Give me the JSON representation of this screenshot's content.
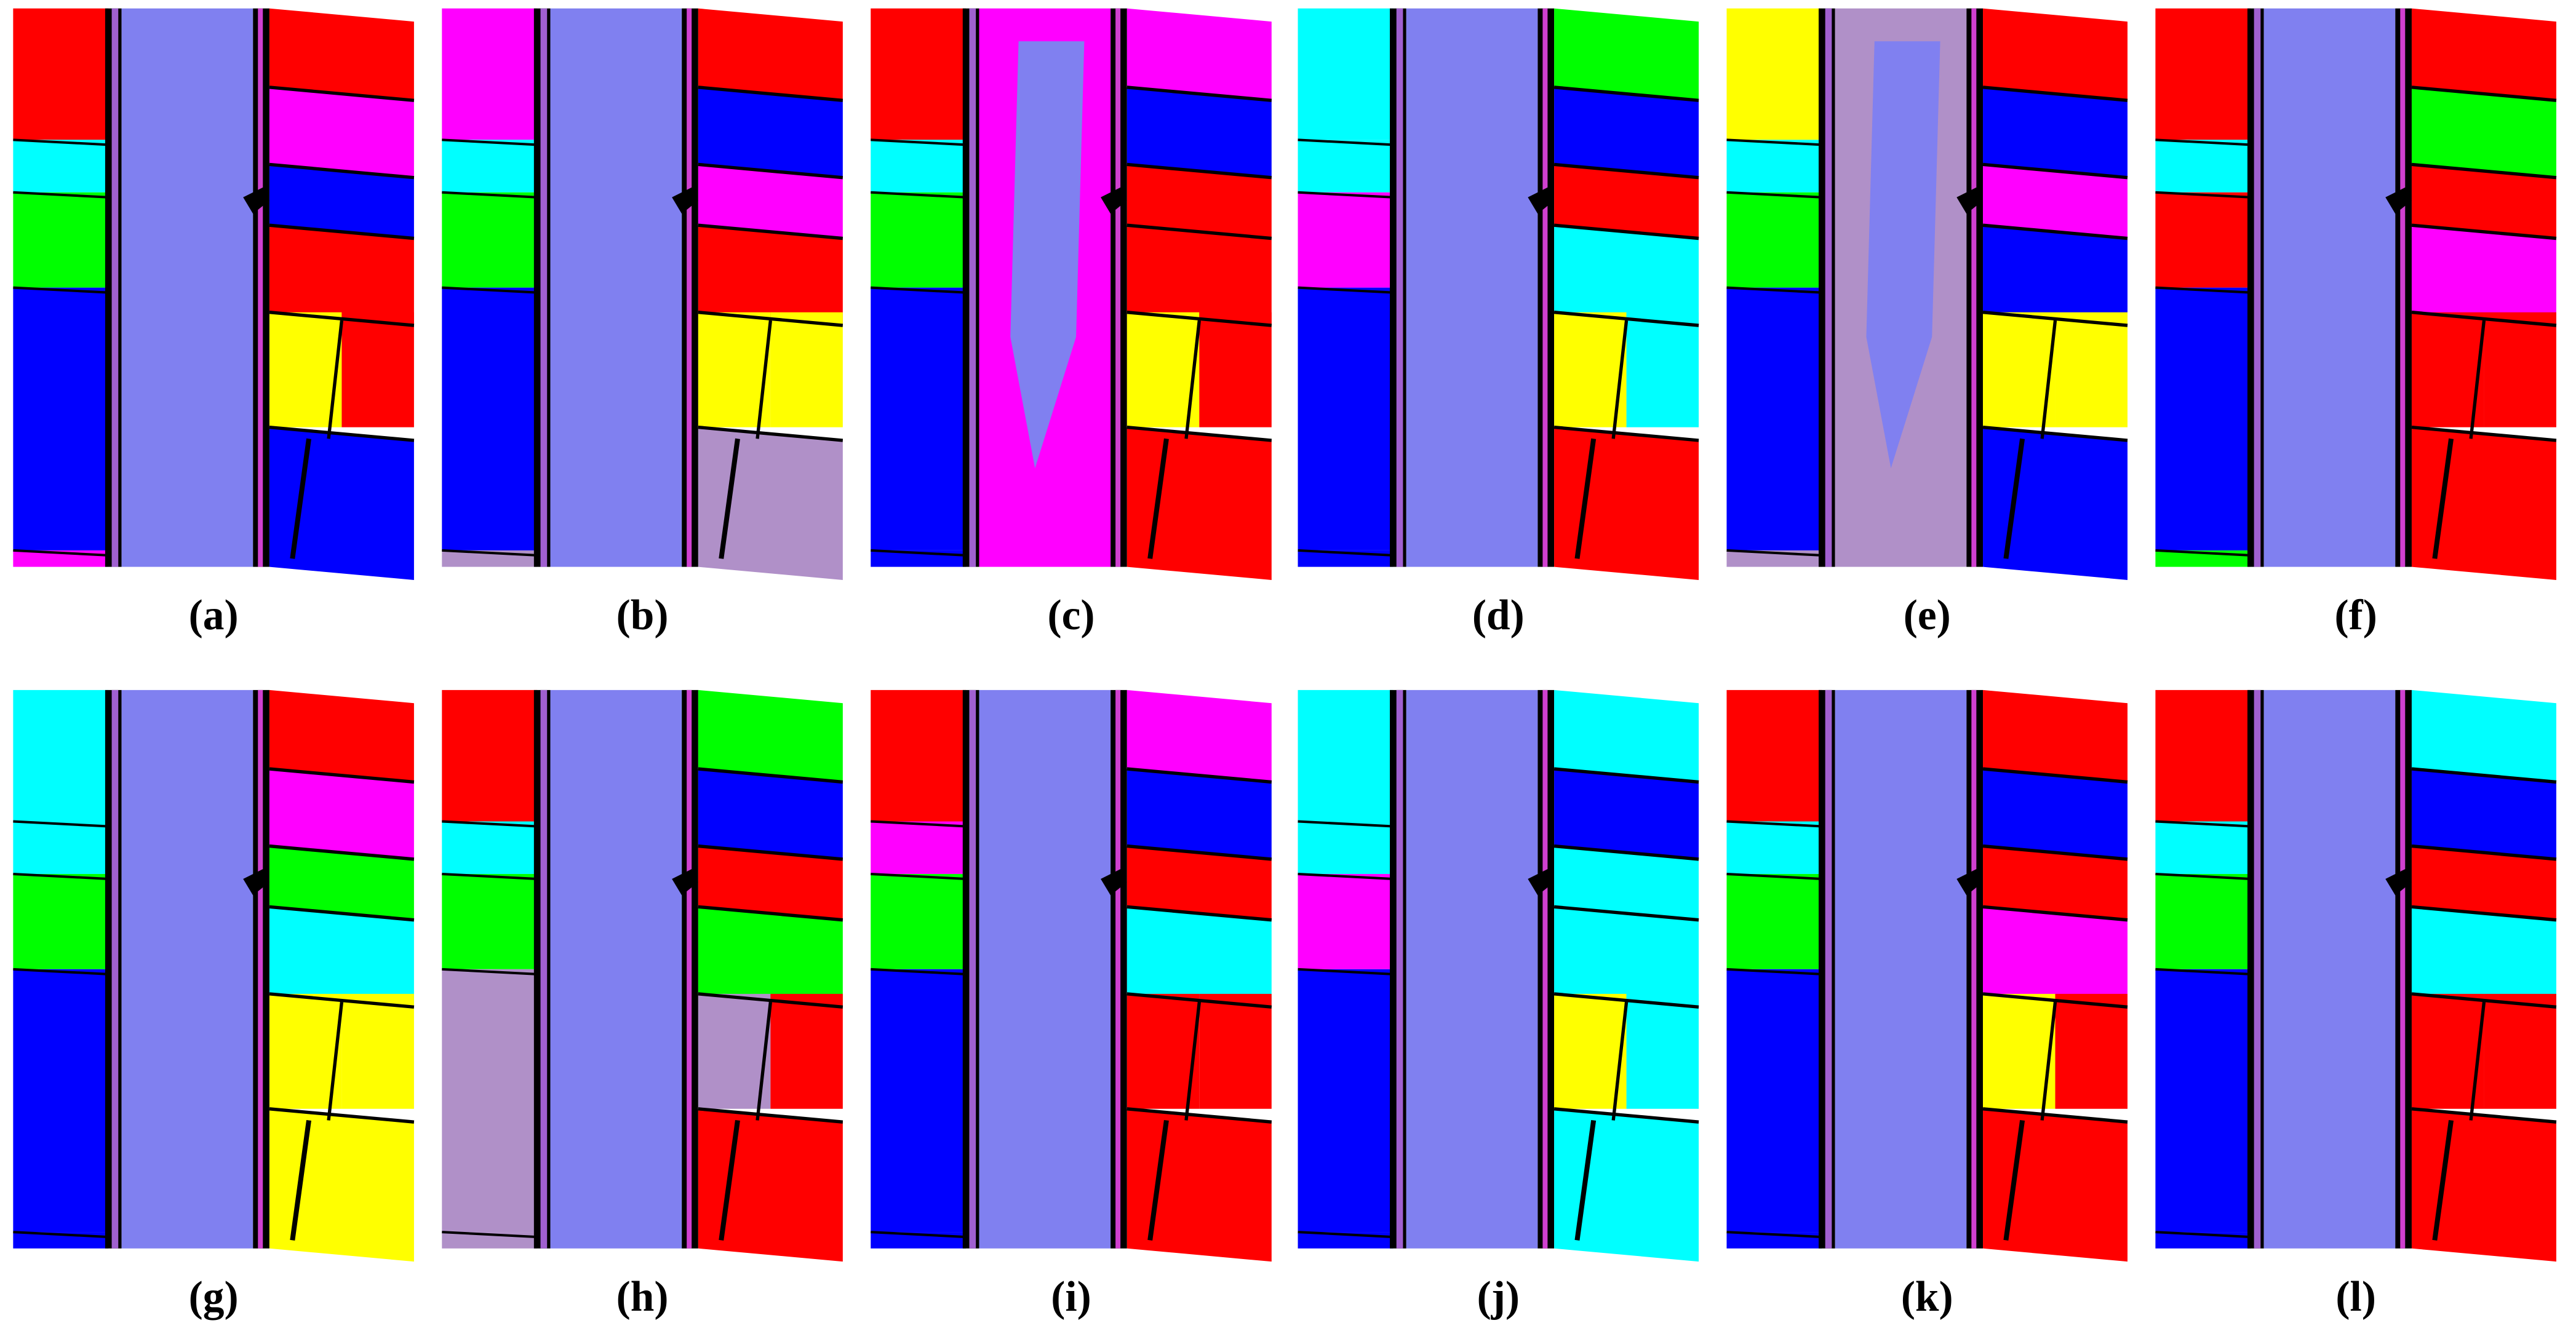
{
  "labels": [
    "(a)",
    "(b)",
    "(c)",
    "(d)",
    "(e)",
    "(f)",
    "(g)",
    "(h)",
    "(i)",
    "(j)",
    "(k)",
    "(l)"
  ]
}
